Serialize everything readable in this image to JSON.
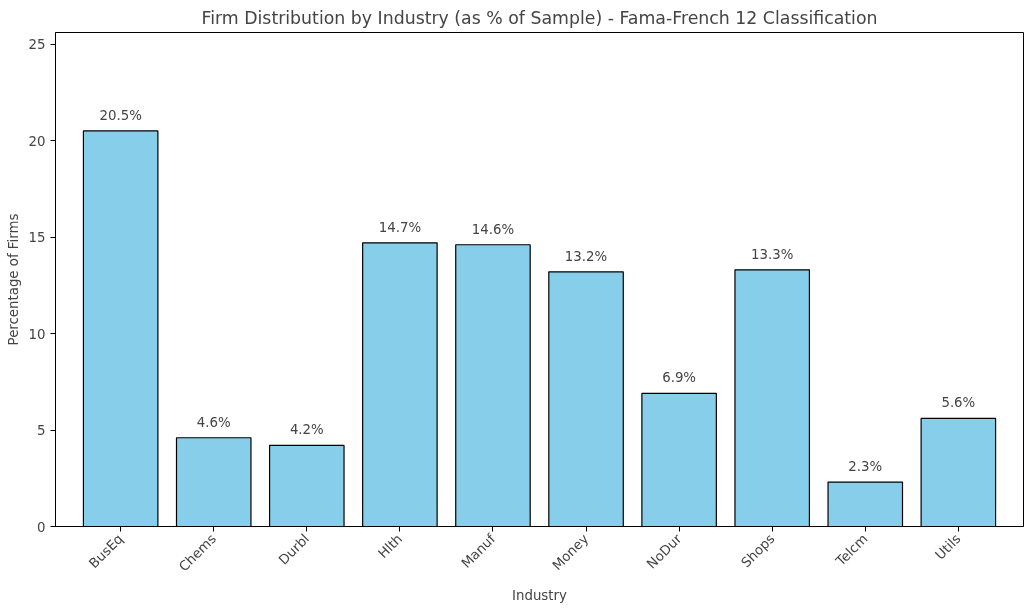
{
  "chart_data": {
    "type": "bar",
    "title": "Firm Distribution by Industry (as % of Sample) - Fama-French 12 Classification",
    "xlabel": "Industry",
    "ylabel": "Percentage of Firms",
    "categories": [
      "BusEq",
      "Chems",
      "Durbl",
      "Hlth",
      "Manuf",
      "Money",
      "NoDur",
      "Shops",
      "Telcm",
      "Utils"
    ],
    "values": [
      20.5,
      4.6,
      4.2,
      14.7,
      14.6,
      13.2,
      6.9,
      13.3,
      2.3,
      5.6
    ],
    "value_labels": [
      "20.5%",
      "4.6%",
      "4.2%",
      "14.7%",
      "14.6%",
      "13.2%",
      "6.9%",
      "13.3%",
      "2.3%",
      "5.6%"
    ],
    "color": "#87ceeb",
    "ylim": [
      0,
      25.6
    ],
    "yticks": [
      0,
      5,
      10,
      15,
      20,
      25
    ],
    "grid": false
  }
}
